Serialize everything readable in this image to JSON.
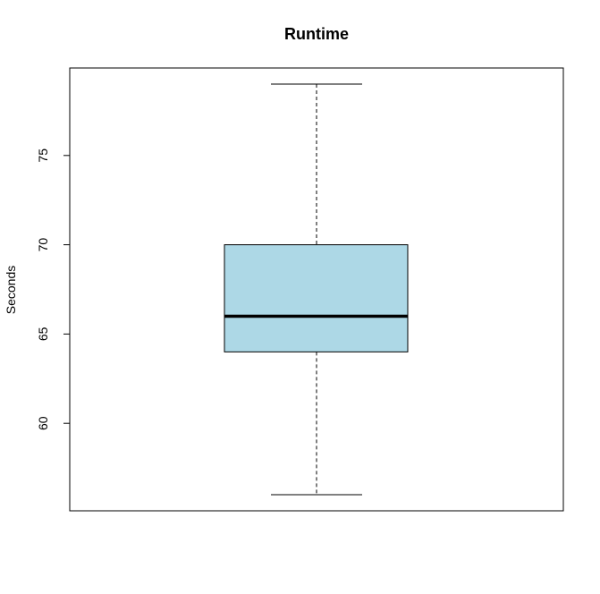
{
  "chart_data": {
    "type": "boxplot",
    "title": "Runtime",
    "xlabel": "",
    "ylabel": "Seconds",
    "ylim": [
      55.1,
      79.9
    ],
    "y_ticks": [
      60,
      65,
      70,
      75
    ],
    "grid": false,
    "legend": "none",
    "box": {
      "whisker_low": 56,
      "q1": 64,
      "median": 66,
      "q3": 70,
      "whisker_high": 79
    },
    "colors": {
      "box_fill": "#add8e6",
      "stroke": "#000000",
      "background": "#ffffff"
    }
  }
}
